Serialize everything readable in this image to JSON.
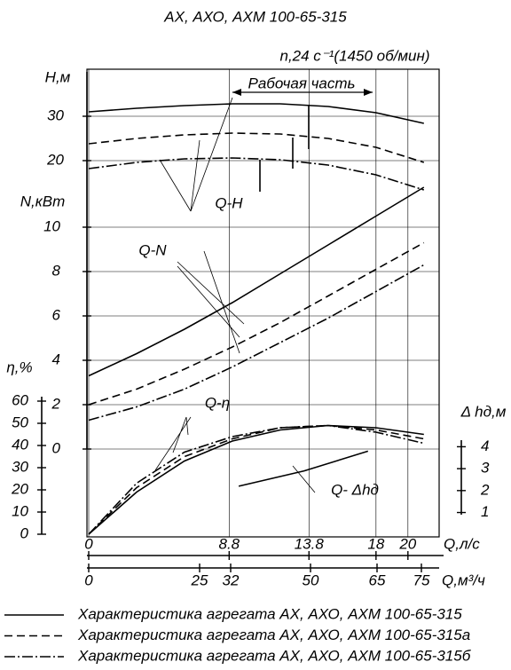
{
  "chart_data": {
    "type": "line",
    "title": "АХ, АХО, АХМ 100-65-315",
    "subtitle": "n,24 с⁻¹(1450 об/мин)",
    "working_zone": "Рабочая часть",
    "color": "#000000",
    "grid": true,
    "x": [
      0,
      3,
      6,
      9,
      12,
      15,
      18,
      21
    ],
    "xlim": [
      0,
      21.9
    ],
    "xticks": [
      0,
      8.8,
      13.8,
      18,
      20
    ],
    "xlabel": "Q,л/с",
    "x2lim": [
      0,
      78.8
    ],
    "x2ticks": [
      0,
      25,
      32,
      50,
      65,
      75
    ],
    "x2label": "Q,м³/ч",
    "panels": [
      {
        "label": "Q-H",
        "axis_label": "Н,м",
        "ylim": [
          13,
          40
        ],
        "yticks": [
          20,
          30
        ],
        "series": [
          {
            "dash": "solid",
            "values": [
              31.0,
              31.8,
              32.4,
              32.8,
              32.8,
              32.2,
              30.8,
              28.4
            ]
          },
          {
            "dash": "dashed",
            "values": [
              23.8,
              25.0,
              25.8,
              26.2,
              26.0,
              25.0,
              23.0,
              19.6
            ]
          },
          {
            "dash": "dash-dot",
            "values": [
              18.2,
              19.6,
              20.4,
              20.6,
              20.2,
              19.0,
              16.8,
              13.4
            ]
          }
        ]
      },
      {
        "label": "Q-N",
        "axis_label": "N,кВт",
        "ylim": [
          0,
          11.6
        ],
        "yticks": [
          0,
          2,
          4,
          6,
          8,
          10
        ],
        "series": [
          {
            "dash": "solid",
            "values": [
              3.3,
              4.3,
              5.4,
              6.6,
              7.9,
              9.2,
              10.5,
              11.8
            ]
          },
          {
            "dash": "dashed",
            "values": [
              2.0,
              2.7,
              3.6,
              4.6,
              5.7,
              6.9,
              8.1,
              9.3
            ]
          },
          {
            "dash": "dash-dot",
            "values": [
              1.3,
              1.9,
              2.7,
              3.7,
              4.8,
              5.9,
              7.1,
              8.3
            ]
          }
        ]
      },
      {
        "label": "Q-η",
        "axis_label": "η,%",
        "ylim": [
          0,
          62
        ],
        "yticks": [
          0,
          10,
          20,
          30,
          40,
          50,
          60
        ],
        "series": [
          {
            "dash": "solid",
            "values": [
              0,
              19,
              33,
              42,
              47,
              49,
              48,
              45
            ]
          },
          {
            "dash": "dashed",
            "values": [
              0,
              21,
              35,
              43,
              48,
              49,
              47,
              43
            ]
          },
          {
            "dash": "dash-dot",
            "values": [
              0,
              23,
              37,
              44,
              48,
              49,
              46,
              41
            ]
          }
        ]
      },
      {
        "label": "Q- Δhд",
        "axis_label": "Δ hд,м",
        "ylim": [
          0.9,
          4.3
        ],
        "yticks": [
          1,
          2,
          3,
          4
        ],
        "series": [
          {
            "dash": "solid",
            "x": [
              9.4,
              13.5,
              17.5
            ],
            "values": [
              2.2,
              2.9,
              3.8
            ]
          }
        ]
      }
    ],
    "legend": [
      {
        "dash": "solid",
        "label": "Характеристика агрегата АХ, АХО, АХМ 100-65-315"
      },
      {
        "dash": "dashed",
        "label": "Характеристика агрегата АХ, АХО, АХМ 100-65-315а"
      },
      {
        "dash": "dash-dot",
        "label": "Характеристика агрегата АХ, АХО, АХМ 100-65-315б"
      }
    ]
  }
}
